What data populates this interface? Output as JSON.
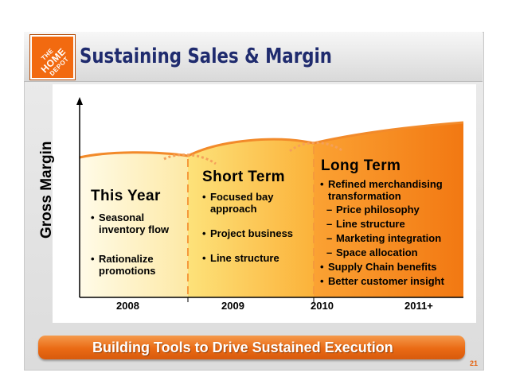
{
  "header": {
    "logo_text": [
      "THE",
      "HOME",
      "DEPOT"
    ],
    "title": "Sustaining Sales & Margin"
  },
  "chart": {
    "y_axis_label": "Gross Margin",
    "x_ticks": [
      "2008",
      "2009",
      "2010",
      "2011+"
    ]
  },
  "phases": [
    {
      "title": "This Year",
      "bullets": [
        {
          "text": "Seasonal inventory flow",
          "level": 1
        },
        {
          "text": "Rationalize promotions",
          "level": 1
        }
      ]
    },
    {
      "title": "Short Term",
      "bullets": [
        {
          "text": "Focused bay approach",
          "level": 1
        },
        {
          "text": "Project business",
          "level": 1
        },
        {
          "text": "Line structure",
          "level": 1
        }
      ]
    },
    {
      "title": "Long Term",
      "bullets": [
        {
          "text": "Refined merchandising transformation",
          "level": 1
        },
        {
          "text": "Price philosophy",
          "level": 2
        },
        {
          "text": "Line structure",
          "level": 2
        },
        {
          "text": "Marketing integration",
          "level": 2
        },
        {
          "text": "Space allocation",
          "level": 2
        },
        {
          "text": "Supply Chain benefits",
          "level": 1
        },
        {
          "text": "Better customer insight",
          "level": 1
        }
      ]
    }
  ],
  "footer": {
    "banner_text": "Building Tools to Drive Sustained Execution",
    "page_number": "21"
  },
  "colors": {
    "title": "#1f2b6e",
    "brand_orange": "#f26a10",
    "dashed_divider": "#f59a3c"
  },
  "bullet_chars": {
    "level1": "•",
    "level2": "–"
  }
}
